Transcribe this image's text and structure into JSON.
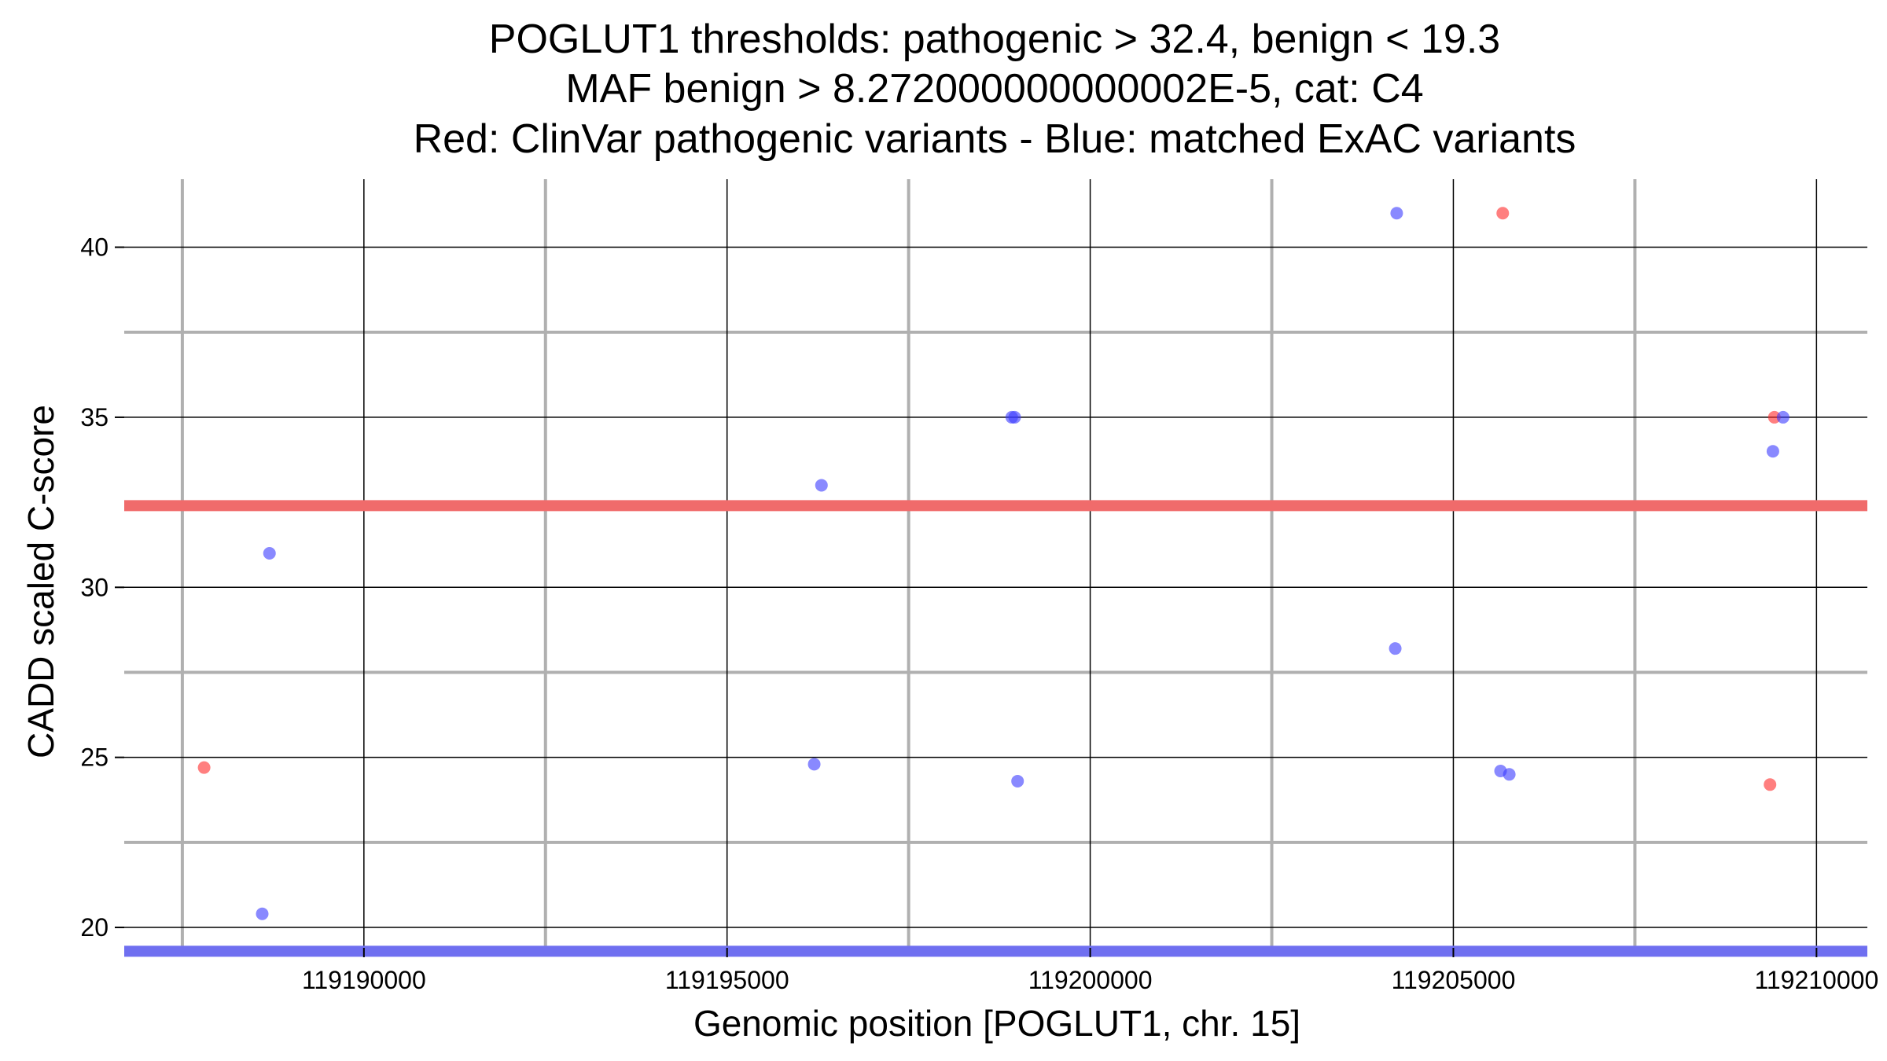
{
  "chart_data": {
    "type": "scatter",
    "title_lines": [
      "POGLUT1 thresholds: pathogenic > 32.4, benign < 19.3",
      "MAF benign > 8.272000000000002E-5, cat: C4",
      "Red: ClinVar pathogenic variants - Blue: matched ExAC variants"
    ],
    "xlabel": "Genomic position [POGLUT1, chr. 15]",
    "ylabel": "CADD scaled C-score",
    "xlim": [
      119186700,
      119210700
    ],
    "ylim": [
      19.4,
      42.0
    ],
    "x_ticks": [
      119190000,
      119195000,
      119200000,
      119205000,
      119210000
    ],
    "x_tick_labels": [
      "119190000",
      "119195000",
      "119200000",
      "119205000",
      "119210000"
    ],
    "x_minor_grid": [
      119187500,
      119192500,
      119197500,
      119202500,
      119207500
    ],
    "y_ticks": [
      20,
      25,
      30,
      35,
      40
    ],
    "y_tick_labels": [
      "20",
      "25",
      "30",
      "35",
      "40"
    ],
    "y_minor_grid": [
      22.5,
      27.5,
      32.5,
      37.5
    ],
    "grid": true,
    "thresholds": [
      {
        "axis": "y",
        "value": 32.4,
        "color": "#f06b6b"
      },
      {
        "axis": "y",
        "value": 19.3,
        "color": "#6f6ff0"
      }
    ],
    "series": [
      {
        "color": "#ff2a2a",
        "points": [
          {
            "x": 119187800,
            "y": 24.7
          },
          {
            "x": 119205680,
            "y": 41.0
          },
          {
            "x": 119209420,
            "y": 35.0
          },
          {
            "x": 119209360,
            "y": 24.2
          }
        ]
      },
      {
        "color": "#3a3aff",
        "points": [
          {
            "x": 119188700,
            "y": 31.0
          },
          {
            "x": 119188600,
            "y": 20.4
          },
          {
            "x": 119196300,
            "y": 33.0
          },
          {
            "x": 119196200,
            "y": 24.8
          },
          {
            "x": 119198920,
            "y": 35.0
          },
          {
            "x": 119198960,
            "y": 35.0
          },
          {
            "x": 119199000,
            "y": 24.3
          },
          {
            "x": 119204220,
            "y": 41.0
          },
          {
            "x": 119204200,
            "y": 28.2
          },
          {
            "x": 119205650,
            "y": 24.6
          },
          {
            "x": 119205770,
            "y": 24.5
          },
          {
            "x": 119209540,
            "y": 35.0
          },
          {
            "x": 119209400,
            "y": 34.0
          }
        ]
      }
    ]
  }
}
